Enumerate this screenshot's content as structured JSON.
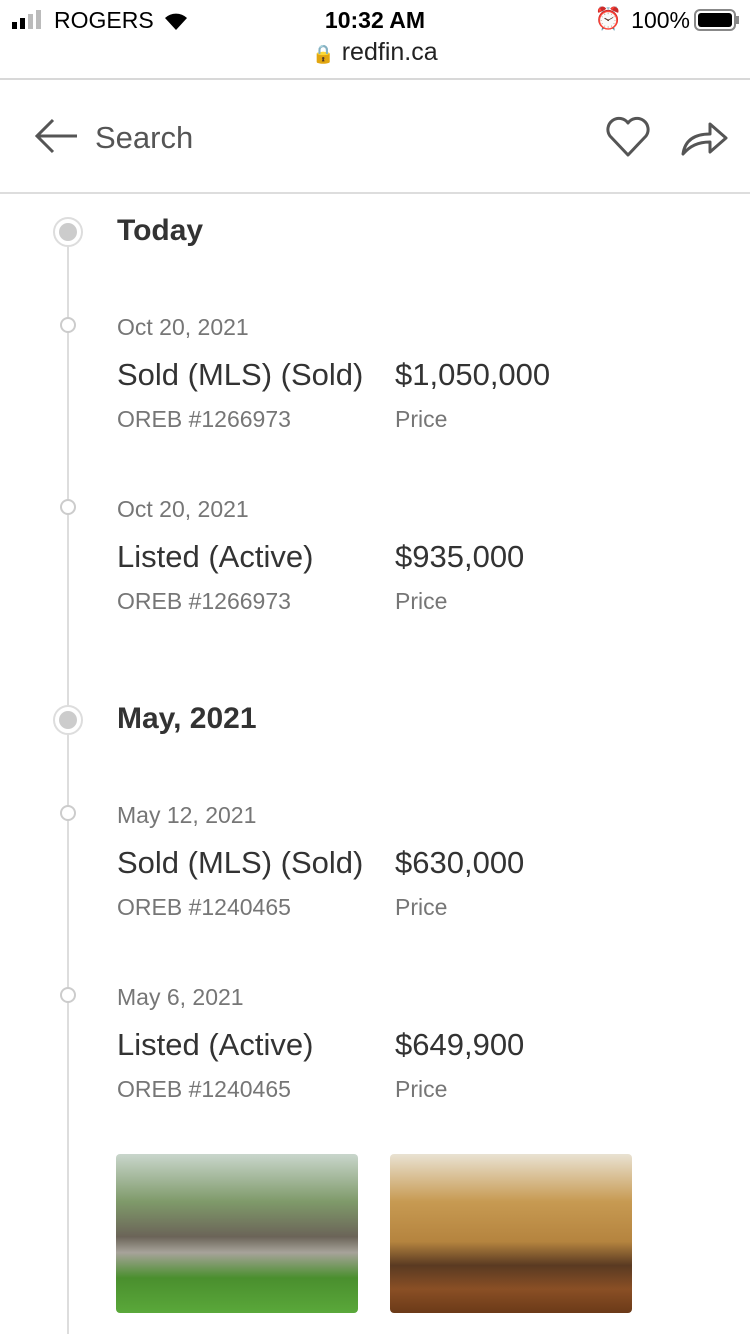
{
  "status_bar": {
    "carrier": "ROGERS",
    "time": "10:32 AM",
    "url": "redfin.ca",
    "battery": "100%"
  },
  "header": {
    "back_label": "Search",
    "icons": [
      "back-arrow-icon",
      "heart-icon",
      "share-icon"
    ]
  },
  "groups": [
    {
      "title": "Today",
      "events": [
        {
          "date": "Oct 20, 2021",
          "title": "Sold (MLS) (Sold)",
          "price": "$1,050,000",
          "source": "OREB #1266973",
          "price_label": "Price"
        },
        {
          "date": "Oct 20, 2021",
          "title": "Listed (Active)",
          "price": "$935,000",
          "source": "OREB #1266973",
          "price_label": "Price"
        }
      ]
    },
    {
      "title": "May, 2021",
      "events": [
        {
          "date": "May 12, 2021",
          "title": "Sold (MLS) (Sold)",
          "price": "$630,000",
          "source": "OREB #1240465",
          "price_label": "Price"
        },
        {
          "date": "May 6, 2021",
          "title": "Listed (Active)",
          "price": "$649,900",
          "source": "OREB #1240465",
          "price_label": "Price"
        }
      ]
    }
  ]
}
